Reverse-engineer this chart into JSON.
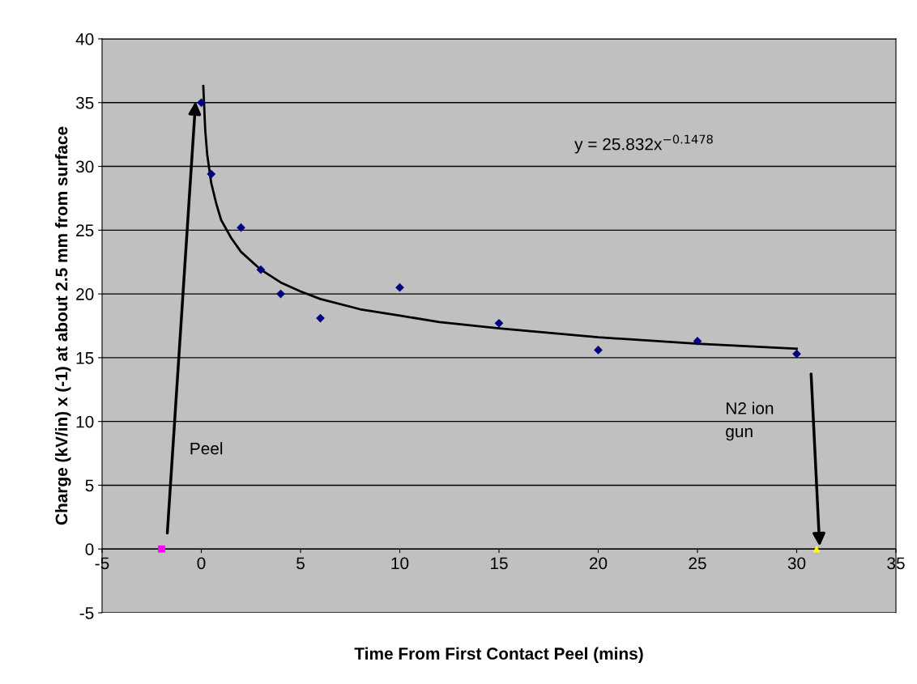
{
  "chart_data": {
    "type": "scatter",
    "xlabel": "Time From First Contact Peel (mins)",
    "ylabel": "Charge (kV/in) x (-1) at about 2.5 mm from surface",
    "series": [
      {
        "color": "#000080",
        "marker": "diamond",
        "x": [
          0,
          0.5,
          2,
          3,
          4,
          6,
          10,
          15,
          20,
          25,
          30
        ],
        "values": [
          35,
          29.4,
          25.2,
          21.9,
          20,
          18.1,
          20.5,
          17.7,
          15.6,
          16.3,
          15.3
        ]
      },
      {
        "type": "scatter",
        "color": "#ff00ff",
        "marker": "square",
        "x": [
          -2
        ],
        "values": [
          0
        ]
      },
      {
        "type": "scatter",
        "color": "#ffff00",
        "marker": "triangle",
        "x": [
          31
        ],
        "values": [
          0
        ]
      },
      {
        "type": "line",
        "color": "#000000",
        "marker": "none",
        "x": [
          0.1,
          0.2,
          0.3,
          0.5,
          0.75,
          1,
          1.5,
          2,
          3,
          4,
          5,
          6,
          8,
          10,
          12,
          15,
          20,
          25,
          30
        ],
        "values": [
          36.3,
          32.8,
          30.9,
          28.7,
          27.1,
          25.8,
          24.4,
          23.3,
          21.9,
          20.9,
          20.2,
          19.6,
          18.8,
          18.3,
          17.8,
          17.3,
          16.6,
          16.1,
          15.7
        ]
      }
    ],
    "annotations": [
      "Peel",
      "N2 ion\ngun",
      "y = 25.832x$^{−0.1478}$"
    ],
    "xlim": [
      -5,
      35
    ],
    "xticks": [
      -5,
      0,
      5,
      10,
      15,
      20,
      25,
      30,
      35
    ],
    "ylim": [
      -5,
      40
    ],
    "yticks": [
      -5,
      0,
      5,
      10,
      15,
      20,
      25,
      30,
      35,
      40
    ],
    "grid": "y",
    "legend": false
  }
}
